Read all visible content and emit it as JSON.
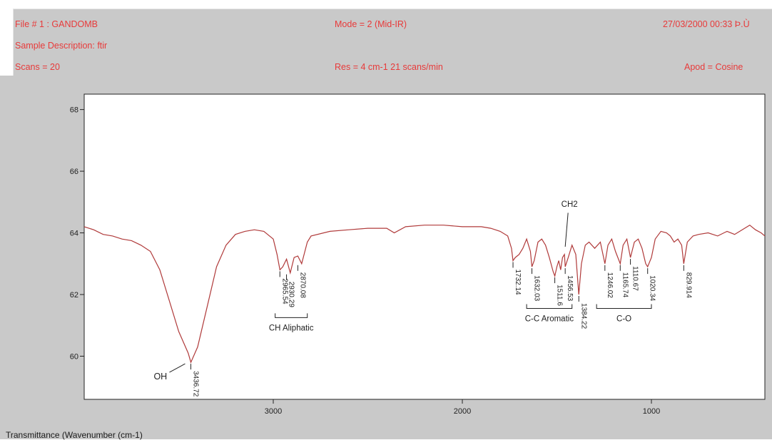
{
  "header": {
    "file": "File # 1 : GANDOMB",
    "mode": "Mode = 2 (Mid-IR)",
    "datetime": "27/03/2000 00:33 Þ.Ù",
    "sample": "Sample Description: ftir",
    "scans": "Scans = 20",
    "res": "Res = 4 cm-1   21 scans/min",
    "apod": "Apod = Cosine"
  },
  "footer_label": "Transmittance (Wavenumber (cm-1)",
  "colors": {
    "line": "#b03a3a",
    "header_text": "#e83a3a",
    "panel_bg": "#c9c9c9",
    "plot_bg": "#ffffff"
  },
  "chart_data": {
    "type": "line",
    "title": "",
    "xlabel": "Transmittance (Wavenumber (cm-1)",
    "ylabel": "",
    "xlim": [
      4000,
      400
    ],
    "ylim": [
      58.6,
      68.5
    ],
    "x_ticks": [
      3000,
      2000,
      1000
    ],
    "y_ticks": [
      60,
      62,
      64,
      66,
      68
    ],
    "x_tick_labels": [
      "3000",
      "2000",
      "1000"
    ],
    "y_tick_labels": [
      "60",
      "62",
      "64",
      "66",
      "68"
    ],
    "grid": false,
    "series": [
      {
        "name": "",
        "x": [
          4000,
          3950,
          3900,
          3850,
          3800,
          3750,
          3700,
          3650,
          3600,
          3550,
          3500,
          3450,
          3436,
          3400,
          3350,
          3300,
          3250,
          3200,
          3150,
          3100,
          3050,
          3000,
          2980,
          2965,
          2950,
          2930,
          2910,
          2890,
          2870,
          2850,
          2820,
          2800,
          2700,
          2600,
          2500,
          2400,
          2360,
          2300,
          2200,
          2100,
          2000,
          1900,
          1850,
          1800,
          1760,
          1740,
          1732,
          1720,
          1700,
          1680,
          1660,
          1640,
          1632,
          1620,
          1600,
          1580,
          1560,
          1540,
          1520,
          1511,
          1500,
          1490,
          1480,
          1470,
          1460,
          1456,
          1440,
          1420,
          1400,
          1384,
          1370,
          1350,
          1330,
          1300,
          1270,
          1246,
          1230,
          1210,
          1190,
          1165,
          1150,
          1130,
          1111,
          1090,
          1070,
          1050,
          1030,
          1020,
          1000,
          980,
          950,
          920,
          900,
          880,
          860,
          840,
          829,
          810,
          780,
          750,
          700,
          650,
          600,
          560,
          520,
          480,
          450,
          420,
          400
        ],
        "values": [
          64.2,
          64.1,
          63.95,
          63.9,
          63.8,
          63.75,
          63.6,
          63.4,
          62.8,
          61.8,
          60.8,
          60.1,
          59.8,
          60.3,
          61.6,
          62.9,
          63.6,
          63.95,
          64.05,
          64.1,
          64.05,
          63.8,
          63.3,
          62.8,
          62.9,
          63.15,
          62.7,
          63.2,
          63.25,
          63.0,
          63.7,
          63.9,
          64.05,
          64.1,
          64.15,
          64.15,
          64.0,
          64.2,
          64.25,
          64.25,
          64.2,
          64.2,
          64.15,
          64.05,
          63.9,
          63.5,
          63.1,
          63.2,
          63.3,
          63.5,
          63.8,
          63.4,
          62.9,
          63.1,
          63.7,
          63.8,
          63.6,
          63.2,
          62.75,
          62.6,
          62.9,
          63.1,
          62.8,
          63.2,
          63.3,
          62.9,
          63.2,
          63.6,
          63.3,
          62.0,
          63.0,
          63.6,
          63.7,
          63.5,
          63.7,
          63.0,
          63.6,
          63.8,
          63.4,
          63.0,
          63.6,
          63.8,
          63.2,
          63.7,
          63.8,
          63.5,
          63.0,
          62.9,
          63.2,
          63.8,
          64.05,
          64.0,
          63.9,
          63.7,
          63.8,
          63.6,
          63.0,
          63.7,
          63.9,
          63.95,
          64.0,
          63.9,
          64.05,
          63.95,
          64.1,
          64.25,
          64.1,
          64.0,
          63.9
        ]
      }
    ],
    "peak_labels": [
      {
        "text": "3436.72",
        "x": 3436,
        "y": 59.8
      },
      {
        "text": "2965.54",
        "x": 2965,
        "y": 62.8
      },
      {
        "text": "2930.29",
        "x": 2930,
        "y": 62.7
      },
      {
        "text": "2870.08",
        "x": 2870,
        "y": 63.0
      },
      {
        "text": "1732.14",
        "x": 1732,
        "y": 63.1
      },
      {
        "text": "1632.03",
        "x": 1632,
        "y": 62.9
      },
      {
        "text": "1511.6",
        "x": 1511,
        "y": 62.6
      },
      {
        "text": "1456.53",
        "x": 1456,
        "y": 62.9
      },
      {
        "text": "1384.22",
        "x": 1384,
        "y": 62.0
      },
      {
        "text": "1246.02",
        "x": 1246,
        "y": 63.0
      },
      {
        "text": "1165.74",
        "x": 1165,
        "y": 63.0
      },
      {
        "text": "1110.67",
        "x": 1111,
        "y": 63.2
      },
      {
        "text": "1020.34",
        "x": 1020,
        "y": 62.9
      },
      {
        "text": "829.914",
        "x": 829,
        "y": 63.0
      }
    ],
    "annotations": [
      {
        "text": "OH",
        "x": 3436,
        "y": 59.8
      },
      {
        "text": "CH Aliphatic",
        "x_from": 2990,
        "x_to": 2820
      },
      {
        "text": "C-C  Aromatic",
        "x_from": 1660,
        "x_to": 1420
      },
      {
        "text": "CH2",
        "x": 1456
      },
      {
        "text": "C-O",
        "x_from": 1290,
        "x_to": 1000
      }
    ]
  }
}
